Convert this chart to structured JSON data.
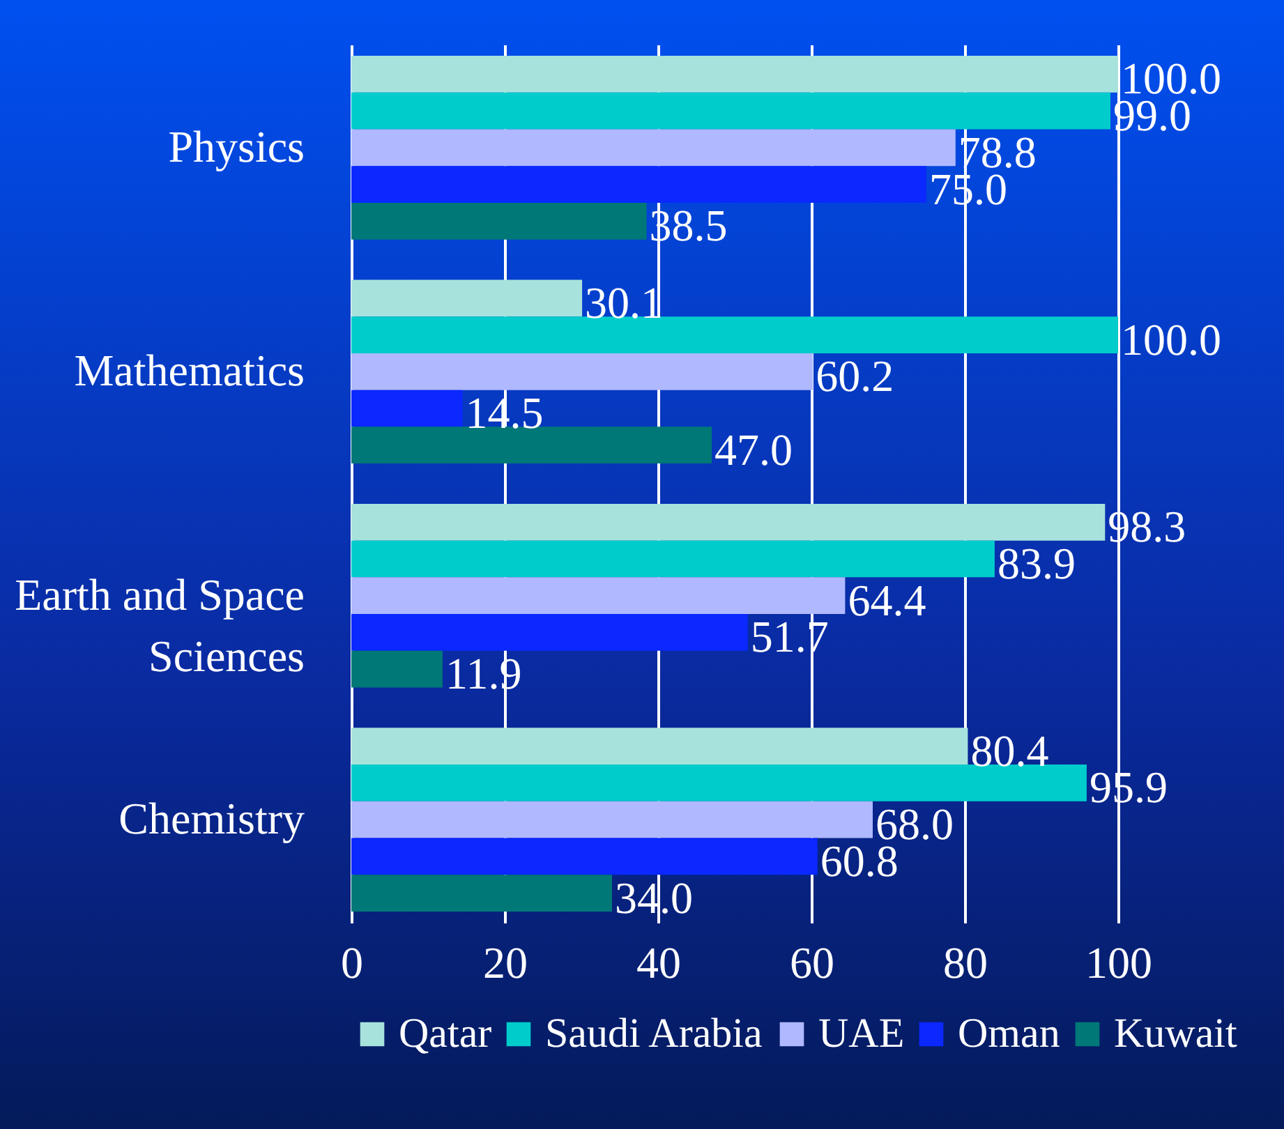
{
  "chart_data": {
    "type": "bar",
    "orientation": "horizontal",
    "categories": [
      "Physics",
      "Mathematics",
      "Earth and Space Sciences",
      "Chemistry"
    ],
    "series": [
      {
        "name": "Qatar",
        "color": "#a8e2dc",
        "values": [
          100.0,
          30.1,
          98.3,
          80.4
        ],
        "value_labels": [
          "100.0",
          "30.1",
          "98.3",
          "80.4"
        ]
      },
      {
        "name": "Saudi Arabia",
        "color": "#00cccc",
        "values": [
          99.0,
          100.0,
          83.9,
          95.9
        ],
        "value_labels": [
          "99.0",
          "100.0",
          "83.9",
          "95.9"
        ]
      },
      {
        "name": "UAE",
        "color": "#b0b8ff",
        "values": [
          78.8,
          60.2,
          64.4,
          68.0
        ],
        "value_labels": [
          "78.8",
          "60.2",
          "64.4",
          "68.0"
        ]
      },
      {
        "name": "Oman",
        "color": "#0a28ff",
        "values": [
          75.0,
          14.5,
          51.7,
          60.8
        ],
        "value_labels": [
          "75.0",
          "14.5",
          "51.7",
          "60.8"
        ]
      },
      {
        "name": "Kuwait",
        "color": "#007878",
        "values": [
          38.5,
          47.0,
          11.9,
          34.0
        ],
        "value_labels": [
          "38.5",
          "47.0",
          "11.9",
          "34.0"
        ]
      }
    ],
    "xlim": [
      0,
      100
    ],
    "xticks": [
      0,
      20,
      40,
      60,
      80,
      100
    ],
    "grid": "x",
    "legend": "bottom"
  }
}
